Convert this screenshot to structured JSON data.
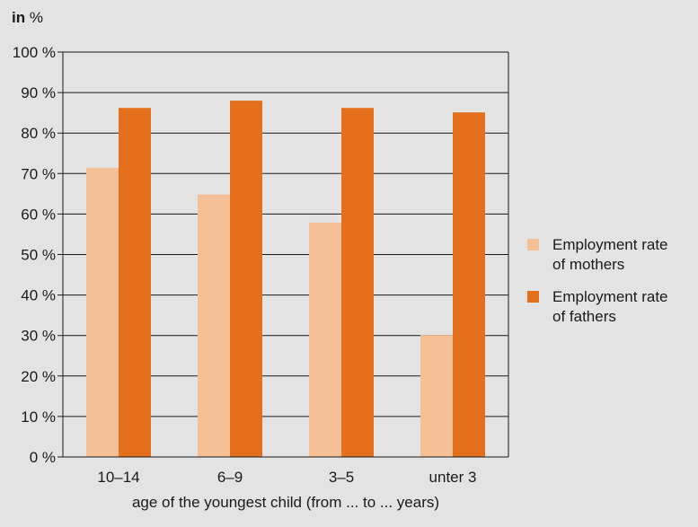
{
  "unit_label": {
    "bold": "in",
    "unit": "%"
  },
  "chart_data": {
    "type": "bar",
    "categories": [
      "10–14",
      "6–9",
      "3–5",
      "unter 3"
    ],
    "series": [
      {
        "name": "Employment rate of mothers",
        "values": [
          71.4,
          64.8,
          57.9,
          30.1
        ],
        "color": "#f5c095"
      },
      {
        "name": "Employment rate of fathers",
        "values": [
          86.2,
          88.0,
          86.2,
          85.1
        ],
        "color": "#e4701e"
      }
    ],
    "ylim": [
      0,
      100
    ],
    "yticks": [
      "0 %",
      "10 %",
      "20 %",
      "30 %",
      "40 %",
      "50 %",
      "60 %",
      "70 %",
      "80 %",
      "90 %",
      "100 %"
    ],
    "xlabel": "age of the youngest child (from ... to ... years)",
    "ylabel": "",
    "grid": true,
    "legend_position": "right"
  },
  "legend": [
    {
      "line1": "Employment rate",
      "line2": "of mothers"
    },
    {
      "line1": "Employment rate",
      "line2": "of fathers"
    }
  ]
}
